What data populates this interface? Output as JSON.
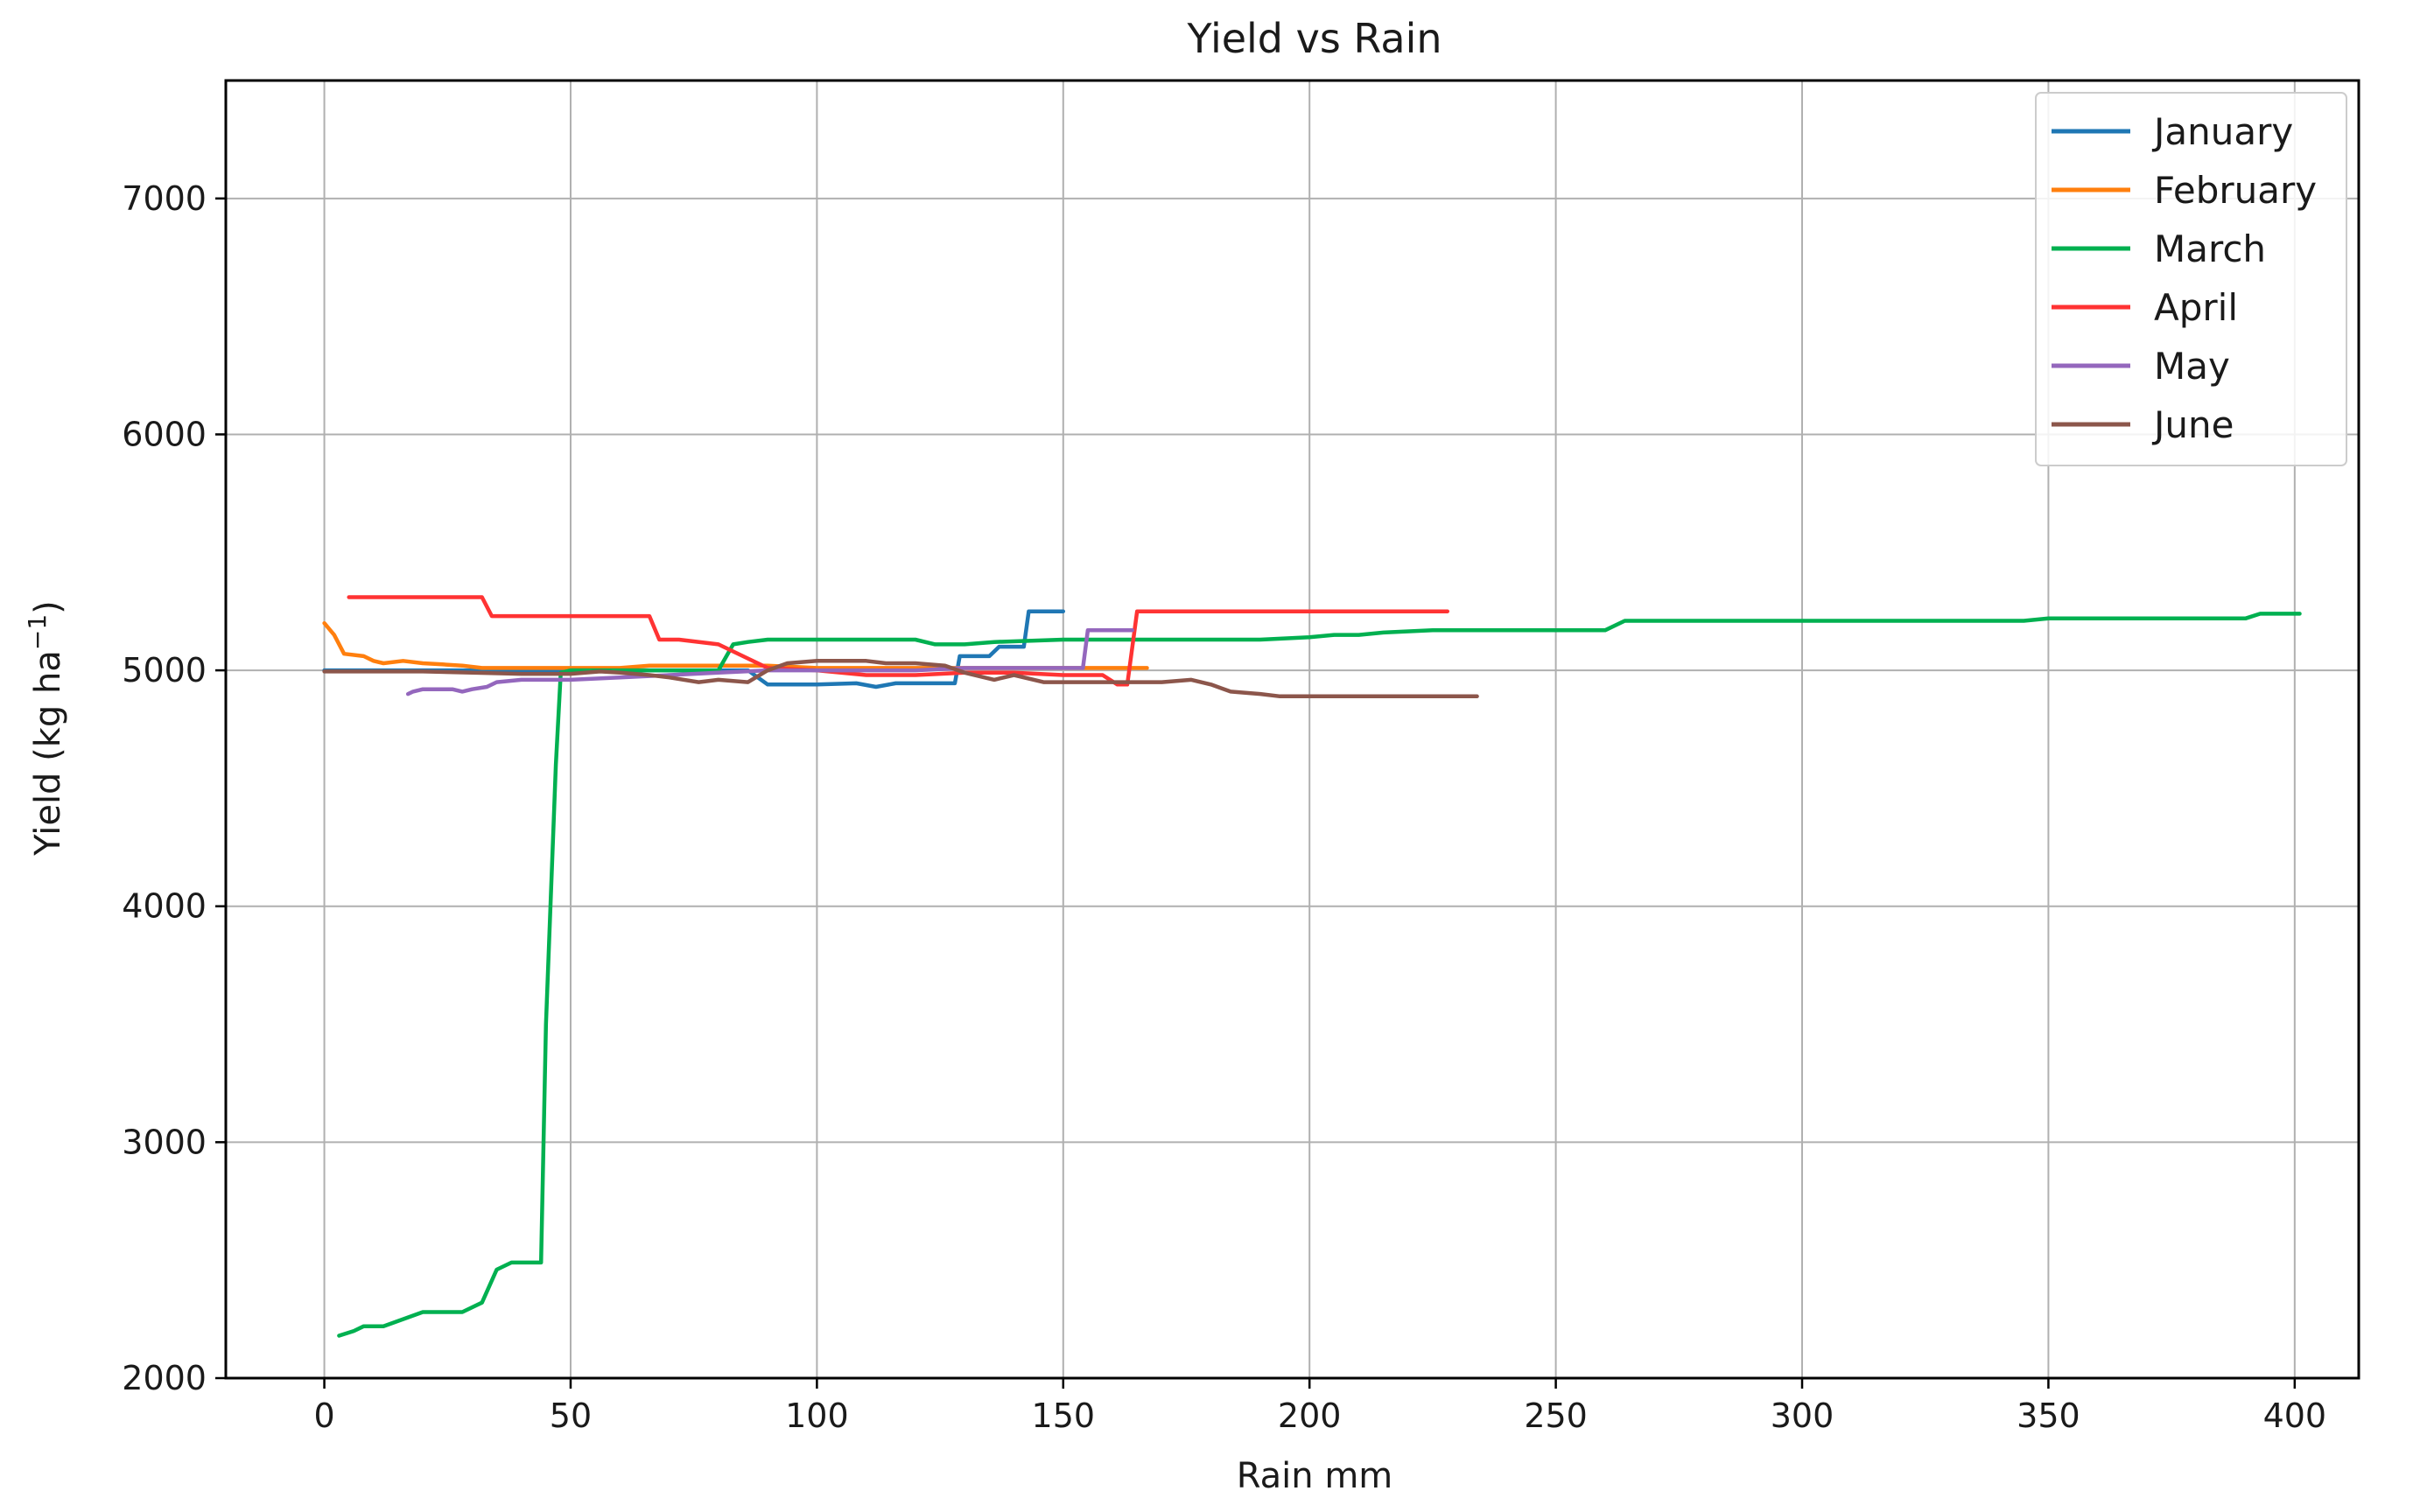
{
  "chart_data": {
    "type": "line",
    "title": "Yield vs Rain",
    "xlabel": "Rain mm",
    "ylabel": "Yield (kg ha",
    "ylabel_sup": "−1",
    "ylabel_close": ")",
    "xlim": [
      -20,
      413
    ],
    "ylim": [
      2000,
      7500
    ],
    "xticks": [
      0,
      50,
      100,
      150,
      200,
      250,
      300,
      350,
      400
    ],
    "yticks": [
      2000,
      3000,
      4000,
      5000,
      6000,
      7000
    ],
    "grid": true,
    "legend_position": "top-right",
    "series": [
      {
        "name": "January",
        "color": "#1f77b4",
        "x": [
          0,
          10,
          20,
          30,
          40,
          50,
          60,
          70,
          80,
          86,
          88,
          90,
          91,
          100,
          108,
          112,
          116,
          120,
          128,
          129,
          135,
          137,
          142,
          143,
          144,
          150
        ],
        "y": [
          5000,
          5000,
          5000,
          5000,
          5000,
          5000,
          5000,
          5000,
          5000,
          5000,
          4970,
          4940,
          4940,
          4940,
          4945,
          4930,
          4945,
          4945,
          4945,
          5060,
          5060,
          5100,
          5100,
          5250,
          5250,
          5250
        ]
      },
      {
        "name": "February",
        "color": "#ff7f0e",
        "x": [
          0,
          2,
          4,
          8,
          10,
          12,
          16,
          20,
          24,
          28,
          32,
          40,
          50,
          60,
          66,
          70,
          80,
          90,
          100,
          110,
          120,
          130,
          140,
          150,
          160,
          167
        ],
        "y": [
          5200,
          5150,
          5070,
          5060,
          5040,
          5030,
          5040,
          5030,
          5025,
          5020,
          5010,
          5010,
          5010,
          5010,
          5020,
          5020,
          5020,
          5020,
          5010,
          5010,
          5010,
          5010,
          5010,
          5010,
          5010,
          5010
        ]
      },
      {
        "name": "March",
        "color": "#00b050",
        "x": [
          3,
          6,
          8,
          12,
          16,
          20,
          24,
          28,
          32,
          35,
          38,
          44,
          45,
          47,
          48,
          50,
          60,
          70,
          80,
          83,
          86,
          90,
          100,
          110,
          120,
          124,
          130,
          136,
          150,
          170,
          190,
          200,
          205,
          210,
          215,
          225,
          240,
          260,
          264,
          300,
          345,
          350,
          390,
          393,
          401
        ],
        "y": [
          2180,
          2200,
          2220,
          2220,
          2250,
          2280,
          2280,
          2280,
          2320,
          2460,
          2490,
          2490,
          3500,
          4600,
          4990,
          5000,
          5000,
          5000,
          5000,
          5110,
          5120,
          5130,
          5130,
          5130,
          5130,
          5110,
          5110,
          5120,
          5130,
          5130,
          5130,
          5140,
          5150,
          5150,
          5160,
          5170,
          5170,
          5170,
          5210,
          5210,
          5210,
          5220,
          5220,
          5240,
          5240
        ]
      },
      {
        "name": "April",
        "color": "#ff3333",
        "x": [
          5,
          20,
          32,
          34,
          50,
          66,
          68,
          72,
          80,
          86,
          90,
          100,
          110,
          120,
          130,
          140,
          150,
          158,
          161,
          163,
          165,
          200,
          228
        ],
        "y": [
          5310,
          5310,
          5310,
          5230,
          5230,
          5230,
          5130,
          5130,
          5110,
          5050,
          5010,
          5000,
          4980,
          4980,
          4990,
          4990,
          4980,
          4980,
          4940,
          4940,
          5250,
          5250,
          5250
        ]
      },
      {
        "name": "May",
        "color": "#9467bd",
        "x": [
          17,
          18,
          20,
          24,
          26,
          28,
          30,
          33,
          35,
          40,
          50,
          60,
          70,
          80,
          90,
          100,
          110,
          120,
          130,
          140,
          150,
          154,
          155,
          160,
          164
        ],
        "y": [
          4900,
          4910,
          4920,
          4920,
          4920,
          4910,
          4920,
          4930,
          4950,
          4960,
          4960,
          4970,
          4980,
          4990,
          5000,
          5000,
          5000,
          5000,
          5010,
          5010,
          5010,
          5010,
          5170,
          5170,
          5170
        ]
      },
      {
        "name": "June",
        "color": "#8c564b",
        "x": [
          0,
          10,
          20,
          30,
          40,
          50,
          56,
          60,
          66,
          70,
          76,
          80,
          86,
          90,
          94,
          100,
          110,
          114,
          120,
          126,
          130,
          136,
          140,
          146,
          150,
          160,
          170,
          176,
          180,
          184,
          190,
          194,
          200,
          234
        ],
        "y": [
          4995,
          4995,
          4995,
          4990,
          4985,
          4985,
          4995,
          4990,
          4980,
          4970,
          4950,
          4960,
          4950,
          5000,
          5030,
          5040,
          5040,
          5030,
          5030,
          5020,
          4990,
          4960,
          4980,
          4950,
          4950,
          4950,
          4950,
          4960,
          4940,
          4910,
          4900,
          4890,
          4890,
          4890
        ]
      }
    ]
  }
}
